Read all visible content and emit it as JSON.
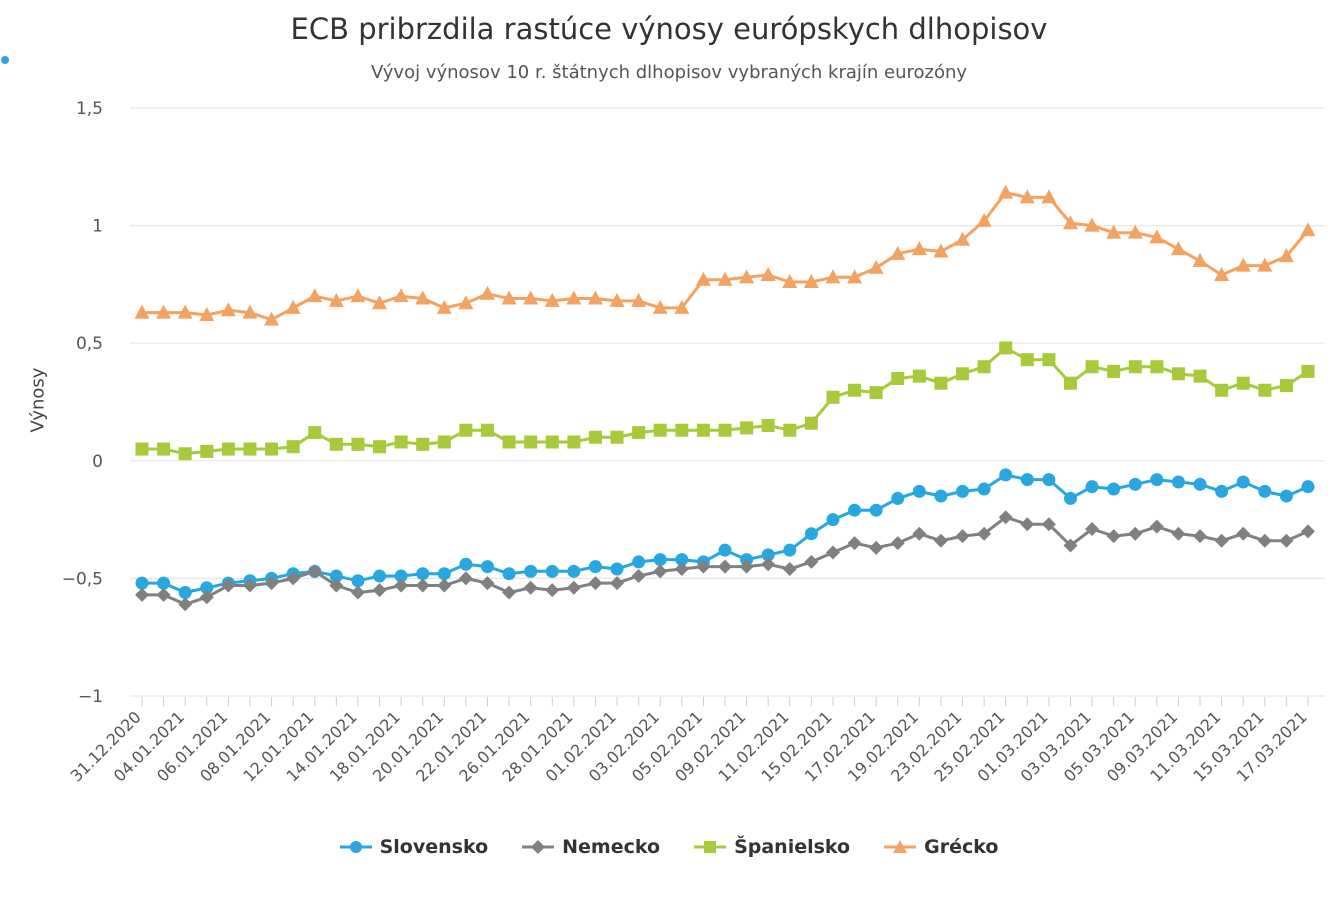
{
  "chart_data": {
    "type": "line",
    "title": "ECB pribrzdila rastúce výnosy európskych dlhopisov",
    "subtitle": "Vývoj výnosov 10 r. štátnych dlhopisov vybraných krajín eurozóny",
    "ylabel": "Výnosy",
    "ylim": [
      -1,
      1.5
    ],
    "yticks": [
      {
        "value": 1.5,
        "label": "1,5"
      },
      {
        "value": 1,
        "label": "1"
      },
      {
        "value": 0.5,
        "label": "0,5"
      },
      {
        "value": 0,
        "label": "0"
      },
      {
        "value": -0.5,
        "label": "−0,5"
      },
      {
        "value": -1,
        "label": "−1"
      }
    ],
    "x_tick_labels": [
      "31.12.2020",
      "04.01.2021",
      "06.01.2021",
      "08.01.2021",
      "12.01.2021",
      "14.01.2021",
      "18.01.2021",
      "20.01.2021",
      "22.01.2021",
      "26.01.2021",
      "28.01.2021",
      "01.02.2021",
      "03.02.2021",
      "05.02.2021",
      "09.02.2021",
      "11.02.2021",
      "15.02.2021",
      "17.02.2021",
      "19.02.2021",
      "23.02.2021",
      "25.02.2021",
      "01.03.2021",
      "03.03.2021",
      "05.03.2021",
      "09.03.2021",
      "11.03.2021",
      "15.03.2021",
      "17.03.2021"
    ],
    "grid": true,
    "legend_position": "bottom",
    "series": [
      {
        "name": "Slovensko",
        "color": "#27a6e0",
        "marker": "circle",
        "values": [
          -0.52,
          -0.52,
          -0.56,
          -0.54,
          -0.52,
          -0.51,
          -0.5,
          -0.48,
          -0.47,
          -0.49,
          -0.51,
          -0.49,
          -0.49,
          -0.48,
          -0.48,
          -0.44,
          -0.45,
          -0.48,
          -0.47,
          -0.47,
          -0.47,
          -0.45,
          -0.46,
          -0.43,
          -0.42,
          -0.42,
          -0.43,
          -0.38,
          -0.42,
          -0.4,
          -0.38,
          -0.31,
          -0.25,
          -0.21,
          -0.21,
          -0.16,
          -0.13,
          -0.15,
          -0.13,
          -0.12,
          -0.06,
          -0.08,
          -0.08,
          -0.16,
          -0.11,
          -0.12,
          -0.1,
          -0.08,
          -0.09,
          -0.1,
          -0.13,
          -0.09,
          -0.13,
          -0.15,
          -0.11
        ]
      },
      {
        "name": "Nemecko",
        "color": "#808080",
        "marker": "diamond",
        "values": [
          -0.57,
          -0.57,
          -0.61,
          -0.58,
          -0.53,
          -0.53,
          -0.52,
          -0.5,
          -0.47,
          -0.53,
          -0.56,
          -0.55,
          -0.53,
          -0.53,
          -0.53,
          -0.5,
          -0.52,
          -0.56,
          -0.54,
          -0.55,
          -0.54,
          -0.52,
          -0.52,
          -0.49,
          -0.47,
          -0.46,
          -0.45,
          -0.45,
          -0.45,
          -0.44,
          -0.46,
          -0.43,
          -0.39,
          -0.35,
          -0.37,
          -0.35,
          -0.31,
          -0.34,
          -0.32,
          -0.31,
          -0.24,
          -0.27,
          -0.27,
          -0.36,
          -0.29,
          -0.32,
          -0.31,
          -0.28,
          -0.31,
          -0.32,
          -0.34,
          -0.31,
          -0.34,
          -0.34,
          -0.3
        ]
      },
      {
        "name": "Španielsko",
        "color": "#a8c93a",
        "marker": "square",
        "values": [
          0.05,
          0.05,
          0.03,
          0.04,
          0.05,
          0.05,
          0.05,
          0.06,
          0.12,
          0.07,
          0.07,
          0.06,
          0.08,
          0.07,
          0.08,
          0.13,
          0.13,
          0.08,
          0.08,
          0.08,
          0.08,
          0.1,
          0.1,
          0.12,
          0.13,
          0.13,
          0.13,
          0.13,
          0.14,
          0.15,
          0.13,
          0.16,
          0.27,
          0.3,
          0.29,
          0.35,
          0.36,
          0.33,
          0.37,
          0.4,
          0.48,
          0.43,
          0.43,
          0.33,
          0.4,
          0.38,
          0.4,
          0.4,
          0.37,
          0.36,
          0.3,
          0.33,
          0.3,
          0.32,
          0.38
        ]
      },
      {
        "name": "Grécko",
        "color": "#f4a261",
        "marker": "triangle",
        "values": [
          0.63,
          0.63,
          0.63,
          0.62,
          0.64,
          0.63,
          0.6,
          0.65,
          0.7,
          0.68,
          0.7,
          0.67,
          0.7,
          0.69,
          0.65,
          0.67,
          0.71,
          0.69,
          0.69,
          0.68,
          0.69,
          0.69,
          0.68,
          0.68,
          0.65,
          0.65,
          0.77,
          0.77,
          0.78,
          0.79,
          0.76,
          0.76,
          0.78,
          0.78,
          0.82,
          0.88,
          0.9,
          0.89,
          0.94,
          1.02,
          1.14,
          1.12,
          1.12,
          1.01,
          1.0,
          0.97,
          0.97,
          0.95,
          0.9,
          0.85,
          0.79,
          0.83,
          0.83,
          0.87,
          0.98
        ]
      }
    ]
  }
}
